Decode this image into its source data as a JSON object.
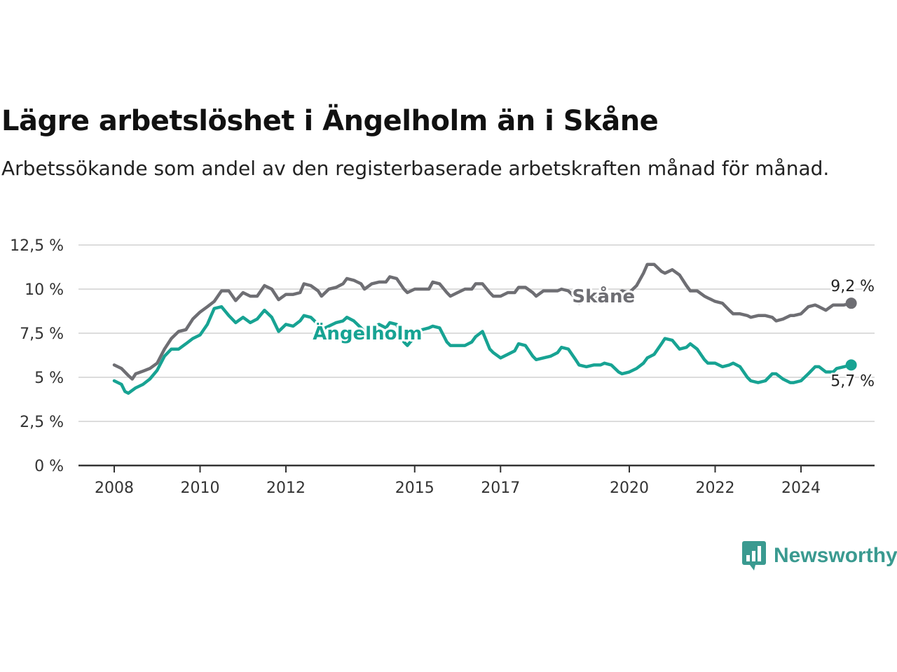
{
  "title": "Lägre arbetslöshet i Ängelholm än i Skåne",
  "subtitle": "Arbetssökande som andel av den registerbaserade arbetskraften månad för månad.",
  "brand": "Newsworthy",
  "colors": {
    "skane": "#6e6e73",
    "angelholm": "#17a393",
    "grid": "#dcdcdc",
    "axis": "#333333"
  },
  "chart_data": {
    "type": "line",
    "title": "Lägre arbetslöshet i Ängelholm än i Skåne",
    "subtitle": "Arbetssökande som andel av den registerbaserade arbetskraften månad för månad.",
    "xlabel": "",
    "ylabel": "",
    "xlim": [
      2007.8,
      2025.5
    ],
    "ylim": [
      0,
      12.5
    ],
    "x_ticks": [
      2008,
      2010,
      2012,
      2015,
      2017,
      2020,
      2022,
      2024
    ],
    "x_tick_labels": [
      "2008",
      "2010",
      "2012",
      "2015",
      "2017",
      "2020",
      "2022",
      "2024"
    ],
    "y_ticks": [
      0,
      2.5,
      5,
      7.5,
      10,
      12.5
    ],
    "y_tick_labels": [
      "0 %",
      "2,5 %",
      "5 %",
      "7,5 %",
      "10 %",
      "12,5 %"
    ],
    "grid": "horizontal",
    "legend": "inline labels",
    "series": [
      {
        "name": "Skåne",
        "end_label": "9,2 %",
        "points": [
          [
            2008.0,
            5.7
          ],
          [
            2008.17,
            5.5
          ],
          [
            2008.33,
            5.1
          ],
          [
            2008.42,
            4.9
          ],
          [
            2008.5,
            5.2
          ],
          [
            2008.67,
            5.35
          ],
          [
            2008.83,
            5.5
          ],
          [
            2009.0,
            5.8
          ],
          [
            2009.17,
            6.6
          ],
          [
            2009.33,
            7.2
          ],
          [
            2009.5,
            7.6
          ],
          [
            2009.67,
            7.7
          ],
          [
            2009.83,
            8.3
          ],
          [
            2010.0,
            8.7
          ],
          [
            2010.17,
            9.0
          ],
          [
            2010.33,
            9.3
          ],
          [
            2010.5,
            9.9
          ],
          [
            2010.67,
            9.9
          ],
          [
            2010.83,
            9.35
          ],
          [
            2011.0,
            9.8
          ],
          [
            2011.17,
            9.6
          ],
          [
            2011.33,
            9.6
          ],
          [
            2011.5,
            10.2
          ],
          [
            2011.67,
            10.0
          ],
          [
            2011.83,
            9.4
          ],
          [
            2012.0,
            9.7
          ],
          [
            2012.17,
            9.7
          ],
          [
            2012.33,
            9.8
          ],
          [
            2012.42,
            10.3
          ],
          [
            2012.58,
            10.2
          ],
          [
            2012.75,
            9.9
          ],
          [
            2012.83,
            9.6
          ],
          [
            2013.0,
            10.0
          ],
          [
            2013.17,
            10.1
          ],
          [
            2013.33,
            10.3
          ],
          [
            2013.42,
            10.6
          ],
          [
            2013.58,
            10.5
          ],
          [
            2013.75,
            10.3
          ],
          [
            2013.83,
            10.0
          ],
          [
            2014.0,
            10.3
          ],
          [
            2014.17,
            10.4
          ],
          [
            2014.33,
            10.4
          ],
          [
            2014.42,
            10.7
          ],
          [
            2014.58,
            10.6
          ],
          [
            2014.75,
            10.0
          ],
          [
            2014.83,
            9.8
          ],
          [
            2015.0,
            10.0
          ],
          [
            2015.17,
            10.0
          ],
          [
            2015.33,
            10.0
          ],
          [
            2015.42,
            10.4
          ],
          [
            2015.58,
            10.3
          ],
          [
            2015.75,
            9.8
          ],
          [
            2015.83,
            9.6
          ],
          [
            2016.0,
            9.8
          ],
          [
            2016.17,
            10.0
          ],
          [
            2016.33,
            10.0
          ],
          [
            2016.42,
            10.3
          ],
          [
            2016.58,
            10.3
          ],
          [
            2016.75,
            9.8
          ],
          [
            2016.83,
            9.6
          ],
          [
            2017.0,
            9.6
          ],
          [
            2017.17,
            9.8
          ],
          [
            2017.33,
            9.8
          ],
          [
            2017.42,
            10.1
          ],
          [
            2017.58,
            10.1
          ],
          [
            2017.75,
            9.8
          ],
          [
            2017.83,
            9.6
          ],
          [
            2018.0,
            9.9
          ],
          [
            2018.17,
            9.9
          ],
          [
            2018.33,
            9.9
          ],
          [
            2018.42,
            10.0
          ],
          [
            2018.58,
            9.9
          ],
          [
            2018.75,
            9.5
          ],
          [
            2018.83,
            9.2
          ],
          [
            2019.0,
            9.4
          ],
          [
            2019.17,
            9.4
          ],
          [
            2019.33,
            9.6
          ],
          [
            2019.5,
            9.7
          ],
          [
            2019.67,
            9.7
          ],
          [
            2019.83,
            9.9
          ],
          [
            2020.0,
            9.8
          ],
          [
            2020.17,
            10.2
          ],
          [
            2020.33,
            10.9
          ],
          [
            2020.42,
            11.4
          ],
          [
            2020.58,
            11.4
          ],
          [
            2020.75,
            11.0
          ],
          [
            2020.83,
            10.9
          ],
          [
            2021.0,
            11.1
          ],
          [
            2021.17,
            10.8
          ],
          [
            2021.33,
            10.2
          ],
          [
            2021.42,
            9.9
          ],
          [
            2021.58,
            9.9
          ],
          [
            2021.75,
            9.6
          ],
          [
            2021.83,
            9.5
          ],
          [
            2022.0,
            9.3
          ],
          [
            2022.17,
            9.2
          ],
          [
            2022.33,
            8.8
          ],
          [
            2022.42,
            8.6
          ],
          [
            2022.58,
            8.6
          ],
          [
            2022.75,
            8.5
          ],
          [
            2022.83,
            8.4
          ],
          [
            2023.0,
            8.5
          ],
          [
            2023.17,
            8.5
          ],
          [
            2023.33,
            8.4
          ],
          [
            2023.42,
            8.2
          ],
          [
            2023.58,
            8.3
          ],
          [
            2023.75,
            8.5
          ],
          [
            2023.83,
            8.5
          ],
          [
            2024.0,
            8.6
          ],
          [
            2024.17,
            9.0
          ],
          [
            2024.33,
            9.1
          ],
          [
            2024.42,
            9.0
          ],
          [
            2024.58,
            8.8
          ],
          [
            2024.75,
            9.1
          ],
          [
            2024.83,
            9.1
          ],
          [
            2025.0,
            9.1
          ],
          [
            2025.17,
            9.2
          ]
        ]
      },
      {
        "name": "Ängelholm",
        "end_label": "5,7 %",
        "points": [
          [
            2008.0,
            4.8
          ],
          [
            2008.17,
            4.6
          ],
          [
            2008.25,
            4.2
          ],
          [
            2008.33,
            4.1
          ],
          [
            2008.5,
            4.4
          ],
          [
            2008.67,
            4.6
          ],
          [
            2008.83,
            4.9
          ],
          [
            2009.0,
            5.4
          ],
          [
            2009.17,
            6.2
          ],
          [
            2009.33,
            6.6
          ],
          [
            2009.5,
            6.6
          ],
          [
            2009.67,
            6.9
          ],
          [
            2009.83,
            7.2
          ],
          [
            2010.0,
            7.4
          ],
          [
            2010.17,
            8.0
          ],
          [
            2010.33,
            8.9
          ],
          [
            2010.5,
            9.0
          ],
          [
            2010.67,
            8.5
          ],
          [
            2010.83,
            8.1
          ],
          [
            2011.0,
            8.4
          ],
          [
            2011.17,
            8.1
          ],
          [
            2011.33,
            8.3
          ],
          [
            2011.5,
            8.8
          ],
          [
            2011.67,
            8.4
          ],
          [
            2011.83,
            7.6
          ],
          [
            2012.0,
            8.0
          ],
          [
            2012.17,
            7.9
          ],
          [
            2012.33,
            8.2
          ],
          [
            2012.42,
            8.5
          ],
          [
            2012.58,
            8.4
          ],
          [
            2012.75,
            8.0
          ],
          [
            2012.83,
            7.7
          ],
          [
            2013.0,
            7.9
          ],
          [
            2013.17,
            8.1
          ],
          [
            2013.33,
            8.2
          ],
          [
            2013.42,
            8.4
          ],
          [
            2013.58,
            8.2
          ],
          [
            2013.75,
            7.8
          ],
          [
            2013.83,
            7.6
          ],
          [
            2014.0,
            7.8
          ],
          [
            2014.17,
            8.0
          ],
          [
            2014.33,
            7.8
          ],
          [
            2014.42,
            8.1
          ],
          [
            2014.58,
            8.0
          ],
          [
            2014.75,
            7.0
          ],
          [
            2014.83,
            6.8
          ],
          [
            2015.0,
            7.3
          ],
          [
            2015.17,
            7.7
          ],
          [
            2015.33,
            7.8
          ],
          [
            2015.42,
            7.9
          ],
          [
            2015.58,
            7.8
          ],
          [
            2015.75,
            7.0
          ],
          [
            2015.83,
            6.8
          ],
          [
            2016.0,
            6.8
          ],
          [
            2016.17,
            6.8
          ],
          [
            2016.33,
            7.0
          ],
          [
            2016.42,
            7.3
          ],
          [
            2016.58,
            7.6
          ],
          [
            2016.75,
            6.6
          ],
          [
            2016.83,
            6.4
          ],
          [
            2017.0,
            6.1
          ],
          [
            2017.17,
            6.3
          ],
          [
            2017.33,
            6.5
          ],
          [
            2017.42,
            6.9
          ],
          [
            2017.58,
            6.8
          ],
          [
            2017.75,
            6.2
          ],
          [
            2017.83,
            6.0
          ],
          [
            2018.0,
            6.1
          ],
          [
            2018.17,
            6.2
          ],
          [
            2018.33,
            6.4
          ],
          [
            2018.42,
            6.7
          ],
          [
            2018.58,
            6.6
          ],
          [
            2018.75,
            6.0
          ],
          [
            2018.83,
            5.7
          ],
          [
            2019.0,
            5.6
          ],
          [
            2019.17,
            5.7
          ],
          [
            2019.33,
            5.7
          ],
          [
            2019.42,
            5.8
          ],
          [
            2019.58,
            5.7
          ],
          [
            2019.75,
            5.3
          ],
          [
            2019.83,
            5.2
          ],
          [
            2020.0,
            5.3
          ],
          [
            2020.17,
            5.5
          ],
          [
            2020.33,
            5.8
          ],
          [
            2020.42,
            6.1
          ],
          [
            2020.58,
            6.3
          ],
          [
            2020.75,
            6.9
          ],
          [
            2020.83,
            7.2
          ],
          [
            2021.0,
            7.1
          ],
          [
            2021.17,
            6.6
          ],
          [
            2021.33,
            6.7
          ],
          [
            2021.42,
            6.9
          ],
          [
            2021.58,
            6.6
          ],
          [
            2021.75,
            6.0
          ],
          [
            2021.83,
            5.8
          ],
          [
            2022.0,
            5.8
          ],
          [
            2022.17,
            5.6
          ],
          [
            2022.33,
            5.7
          ],
          [
            2022.42,
            5.8
          ],
          [
            2022.58,
            5.6
          ],
          [
            2022.75,
            5.0
          ],
          [
            2022.83,
            4.8
          ],
          [
            2023.0,
            4.7
          ],
          [
            2023.17,
            4.8
          ],
          [
            2023.33,
            5.2
          ],
          [
            2023.42,
            5.2
          ],
          [
            2023.58,
            4.9
          ],
          [
            2023.75,
            4.7
          ],
          [
            2023.83,
            4.7
          ],
          [
            2024.0,
            4.8
          ],
          [
            2024.17,
            5.2
          ],
          [
            2024.33,
            5.6
          ],
          [
            2024.42,
            5.6
          ],
          [
            2024.58,
            5.3
          ],
          [
            2024.75,
            5.3
          ],
          [
            2024.83,
            5.5
          ],
          [
            2025.0,
            5.6
          ],
          [
            2025.17,
            5.7
          ]
        ]
      }
    ]
  }
}
